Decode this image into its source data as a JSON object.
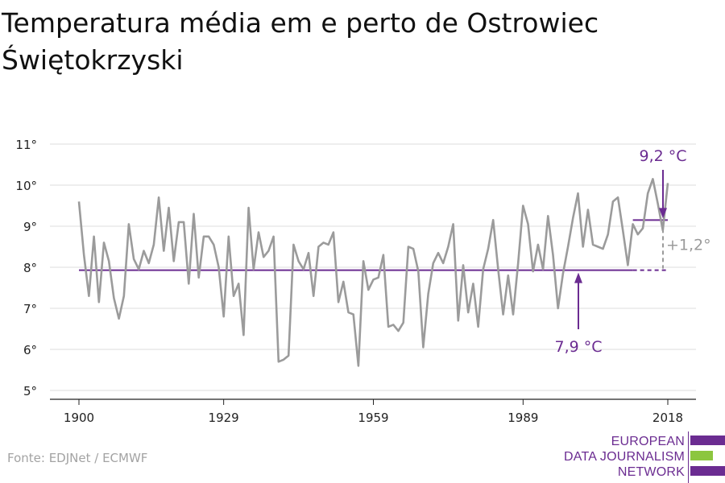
{
  "title": "Temperatura média em e perto de Ostrowiec Świętokrzyski",
  "source": "Fonte: EDJNet / ECMWF",
  "logo": {
    "lines": [
      "EUROPEAN",
      "DATA JOURNALISM",
      "NETWORK"
    ],
    "purple": "#6b2c91",
    "green": "#8cc63f"
  },
  "colors": {
    "series": "#9b9b9b",
    "reference": "#6b2c91",
    "difference": "#9b9b9b"
  },
  "chart_data": {
    "type": "line",
    "title": "Temperatura média em e perto de Ostrowiec Świętokrzyski",
    "xlabel": "",
    "ylabel": "",
    "xlim": [
      1900,
      2018
    ],
    "ylim": [
      5,
      11
    ],
    "y_ticks": [
      5,
      6,
      7,
      8,
      9,
      10,
      11
    ],
    "y_tick_labels": [
      "5°",
      "6°",
      "7°",
      "8°",
      "9°",
      "10°",
      "11°"
    ],
    "x_ticks": [
      1900,
      1929,
      1959,
      1989,
      2018
    ],
    "x_tick_labels": [
      "1900",
      "1929",
      "1959",
      "1989",
      "2018"
    ],
    "grid": true,
    "x": [
      1900,
      1901,
      1902,
      1903,
      1904,
      1905,
      1906,
      1907,
      1908,
      1909,
      1910,
      1911,
      1912,
      1913,
      1914,
      1915,
      1916,
      1917,
      1918,
      1919,
      1920,
      1921,
      1922,
      1923,
      1924,
      1925,
      1926,
      1927,
      1928,
      1929,
      1930,
      1931,
      1932,
      1933,
      1934,
      1935,
      1936,
      1937,
      1938,
      1939,
      1940,
      1941,
      1942,
      1943,
      1944,
      1945,
      1946,
      1947,
      1948,
      1949,
      1950,
      1951,
      1952,
      1953,
      1954,
      1955,
      1956,
      1957,
      1958,
      1959,
      1960,
      1961,
      1962,
      1963,
      1964,
      1965,
      1966,
      1967,
      1968,
      1969,
      1970,
      1971,
      1972,
      1973,
      1974,
      1975,
      1976,
      1977,
      1978,
      1979,
      1980,
      1981,
      1982,
      1983,
      1984,
      1985,
      1986,
      1987,
      1988,
      1989,
      1990,
      1991,
      1992,
      1993,
      1994,
      1995,
      1996,
      1997,
      1998,
      1999,
      2000,
      2001,
      2002,
      2003,
      2004,
      2005,
      2006,
      2007,
      2008,
      2009,
      2010,
      2011,
      2012,
      2013,
      2014,
      2015,
      2016,
      2017,
      2018
    ],
    "values": [
      9.6,
      8.3,
      7.3,
      8.75,
      7.15,
      8.6,
      8.15,
      7.25,
      6.75,
      7.3,
      9.05,
      8.2,
      7.95,
      8.4,
      8.1,
      8.55,
      9.7,
      8.4,
      9.45,
      8.15,
      9.1,
      9.1,
      7.6,
      9.3,
      7.75,
      8.75,
      8.75,
      8.55,
      8.0,
      6.8,
      8.75,
      7.3,
      7.6,
      6.35,
      9.45,
      7.95,
      8.85,
      8.25,
      8.4,
      8.75,
      5.7,
      5.75,
      5.85,
      8.55,
      8.15,
      7.95,
      8.35,
      7.3,
      8.5,
      8.6,
      8.55,
      8.85,
      7.15,
      7.65,
      6.9,
      6.85,
      5.6,
      8.15,
      7.45,
      7.7,
      7.75,
      8.3,
      6.55,
      6.6,
      6.45,
      6.65,
      8.5,
      8.45,
      7.9,
      6.05,
      7.35,
      8.1,
      8.35,
      8.1,
      8.5,
      9.05,
      6.7,
      8.05,
      6.9,
      7.6,
      6.55,
      7.95,
      8.45,
      9.15,
      7.95,
      6.85,
      7.8,
      6.85,
      8.1,
      9.5,
      9.05,
      7.9,
      8.55,
      7.95,
      9.25,
      8.3,
      7.0,
      7.85,
      8.5,
      9.2,
      9.8,
      8.5,
      9.4,
      8.55,
      8.5,
      8.45,
      8.8,
      9.6,
      9.7,
      8.9,
      8.05,
      9.05,
      8.8,
      8.95,
      9.8,
      10.15,
      9.55,
      8.9,
      10.05
    ],
    "reference_lines": [
      {
        "label": "7,9 °C",
        "value": 7.93,
        "x_start": 1900,
        "x_end": 2011,
        "dashed_x_end": 2018
      },
      {
        "label": "9,2 °C",
        "value": 9.15,
        "x_start": 2011,
        "x_end": 2018
      }
    ],
    "difference_label": "+1,2°"
  }
}
